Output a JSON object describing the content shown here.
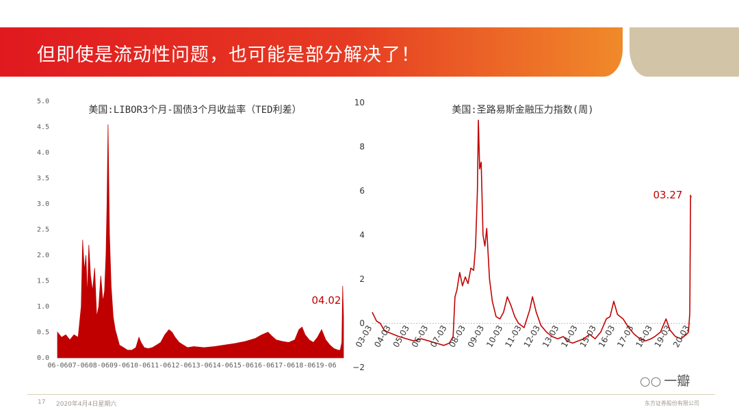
{
  "banner": {
    "title": "但即使是流动性问题，也可能是部分解决了！"
  },
  "footer": {
    "page": "17",
    "date": "2020年4月4日星期六",
    "company": "东方证券股份有限公司"
  },
  "watermark": {
    "text": "一瓣",
    "icon": "wechat-icon"
  },
  "colors": {
    "series": "#c00000",
    "banner_start": "#e0191f",
    "banner_end": "#f08a2a",
    "tan": "#d2c4a6"
  },
  "chart_data": [
    {
      "type": "area",
      "title": "美国:LIBOR3个月-国债3个月收益率（TED利差）",
      "ylim": [
        0,
        5
      ],
      "ytick_labels": [
        "0.0",
        "0.5",
        "1.0",
        "1.5",
        "2.0",
        "2.5",
        "3.0",
        "3.5",
        "4.0",
        "4.5",
        "5.0"
      ],
      "xtick_labels": [
        "06-06",
        "07-06",
        "08-06",
        "09-06",
        "10-06",
        "11-06",
        "12-06",
        "13-06",
        "14-06",
        "15-06",
        "16-06",
        "17-06",
        "18-06",
        "19-06"
      ],
      "x_start_year": 2006.4,
      "x_end_year": 2020.26,
      "annotation": "04.02",
      "series": [
        {
          "x": [
            2006.4,
            2006.6,
            2006.8,
            2007.0,
            2007.2,
            2007.4,
            2007.55,
            2007.62,
            2007.7,
            2007.78,
            2007.85,
            2007.92,
            2008.0,
            2008.1,
            2008.2,
            2008.3,
            2008.4,
            2008.5,
            2008.6,
            2008.68,
            2008.75,
            2008.8,
            2008.85,
            2008.92,
            2009.0,
            2009.1,
            2009.2,
            2009.3,
            2009.4,
            2009.6,
            2009.8,
            2010.0,
            2010.2,
            2010.35,
            2010.45,
            2010.6,
            2010.8,
            2011.0,
            2011.2,
            2011.4,
            2011.6,
            2011.8,
            2011.95,
            2012.1,
            2012.3,
            2012.5,
            2012.7,
            2013.0,
            2013.5,
            2014.0,
            2014.5,
            2015.0,
            2015.5,
            2016.0,
            2016.3,
            2016.6,
            2016.8,
            2017.0,
            2017.3,
            2017.6,
            2017.9,
            2018.1,
            2018.25,
            2018.4,
            2018.6,
            2018.8,
            2019.0,
            2019.2,
            2019.4,
            2019.6,
            2019.8,
            2020.0,
            2020.1,
            2020.18,
            2020.22,
            2020.26
          ],
          "values": [
            0.5,
            0.4,
            0.45,
            0.35,
            0.45,
            0.4,
            1.0,
            2.3,
            1.7,
            2.0,
            1.2,
            2.2,
            1.6,
            1.3,
            1.75,
            0.8,
            1.0,
            1.6,
            1.1,
            1.3,
            2.0,
            3.0,
            4.55,
            2.4,
            1.4,
            0.8,
            0.55,
            0.4,
            0.25,
            0.2,
            0.15,
            0.15,
            0.2,
            0.4,
            0.3,
            0.2,
            0.18,
            0.2,
            0.25,
            0.3,
            0.45,
            0.55,
            0.5,
            0.4,
            0.3,
            0.25,
            0.2,
            0.22,
            0.2,
            0.22,
            0.25,
            0.28,
            0.32,
            0.38,
            0.45,
            0.5,
            0.42,
            0.35,
            0.32,
            0.3,
            0.35,
            0.55,
            0.6,
            0.45,
            0.35,
            0.3,
            0.4,
            0.55,
            0.35,
            0.25,
            0.18,
            0.15,
            0.15,
            0.3,
            1.4,
            0.8
          ]
        }
      ]
    },
    {
      "type": "line",
      "title": "美国:圣路易斯金融压力指数(周)",
      "ylim": [
        -2,
        10
      ],
      "ytick_labels": [
        "−2",
        "0",
        "2",
        "4",
        "6",
        "8",
        "10"
      ],
      "xtick_labels": [
        "03-03",
        "04-03",
        "05-03",
        "06-03",
        "07-03",
        "08-03",
        "09-03",
        "10-03",
        "11-03",
        "12-03",
        "13-03",
        "14-03",
        "15-03",
        "16-03",
        "17-03",
        "18-03",
        "19-03",
        "20-03"
      ],
      "x_start_year": 2003.17,
      "x_end_year": 2020.24,
      "annotation": "03.27",
      "series": [
        {
          "x": [
            2003.17,
            2003.4,
            2003.6,
            2003.8,
            2004.0,
            2004.3,
            2004.6,
            2005.0,
            2005.4,
            2005.8,
            2006.2,
            2006.6,
            2007.0,
            2007.3,
            2007.5,
            2007.6,
            2007.7,
            2007.85,
            2008.0,
            2008.15,
            2008.3,
            2008.45,
            2008.6,
            2008.7,
            2008.8,
            2008.85,
            2008.92,
            2009.0,
            2009.1,
            2009.2,
            2009.3,
            2009.45,
            2009.6,
            2009.8,
            2010.0,
            2010.2,
            2010.4,
            2010.6,
            2010.8,
            2011.0,
            2011.3,
            2011.6,
            2011.75,
            2011.95,
            2012.2,
            2012.5,
            2012.8,
            2013.1,
            2013.4,
            2013.6,
            2013.9,
            2014.2,
            2014.5,
            2014.8,
            2015.1,
            2015.4,
            2015.7,
            2015.9,
            2016.1,
            2016.3,
            2016.6,
            2016.9,
            2017.2,
            2017.5,
            2017.8,
            2018.1,
            2018.3,
            2018.6,
            2018.9,
            2019.1,
            2019.4,
            2019.7,
            2020.0,
            2020.1,
            2020.17,
            2020.21,
            2020.24
          ],
          "values": [
            0.5,
            0.1,
            0.0,
            -0.3,
            -0.4,
            -0.5,
            -0.6,
            -0.7,
            -0.8,
            -0.7,
            -0.8,
            -0.9,
            -1.0,
            -0.9,
            -0.6,
            1.2,
            1.5,
            2.3,
            1.7,
            2.1,
            1.8,
            2.5,
            2.4,
            3.5,
            6.0,
            9.2,
            7.0,
            7.3,
            4.0,
            3.5,
            4.3,
            2.0,
            1.0,
            0.3,
            0.2,
            0.5,
            1.2,
            0.8,
            0.3,
            0.0,
            -0.2,
            0.6,
            1.2,
            0.5,
            -0.1,
            -0.4,
            -0.6,
            -0.7,
            -0.6,
            -0.8,
            -0.9,
            -0.8,
            -0.7,
            -0.5,
            -0.7,
            -0.4,
            0.2,
            0.3,
            1.0,
            0.4,
            0.2,
            -0.2,
            -0.5,
            -0.7,
            -0.8,
            -0.7,
            -0.6,
            -0.4,
            0.2,
            -0.3,
            -0.6,
            -0.7,
            -0.5,
            -0.4,
            0.5,
            5.8,
            5.7
          ]
        }
      ]
    }
  ]
}
